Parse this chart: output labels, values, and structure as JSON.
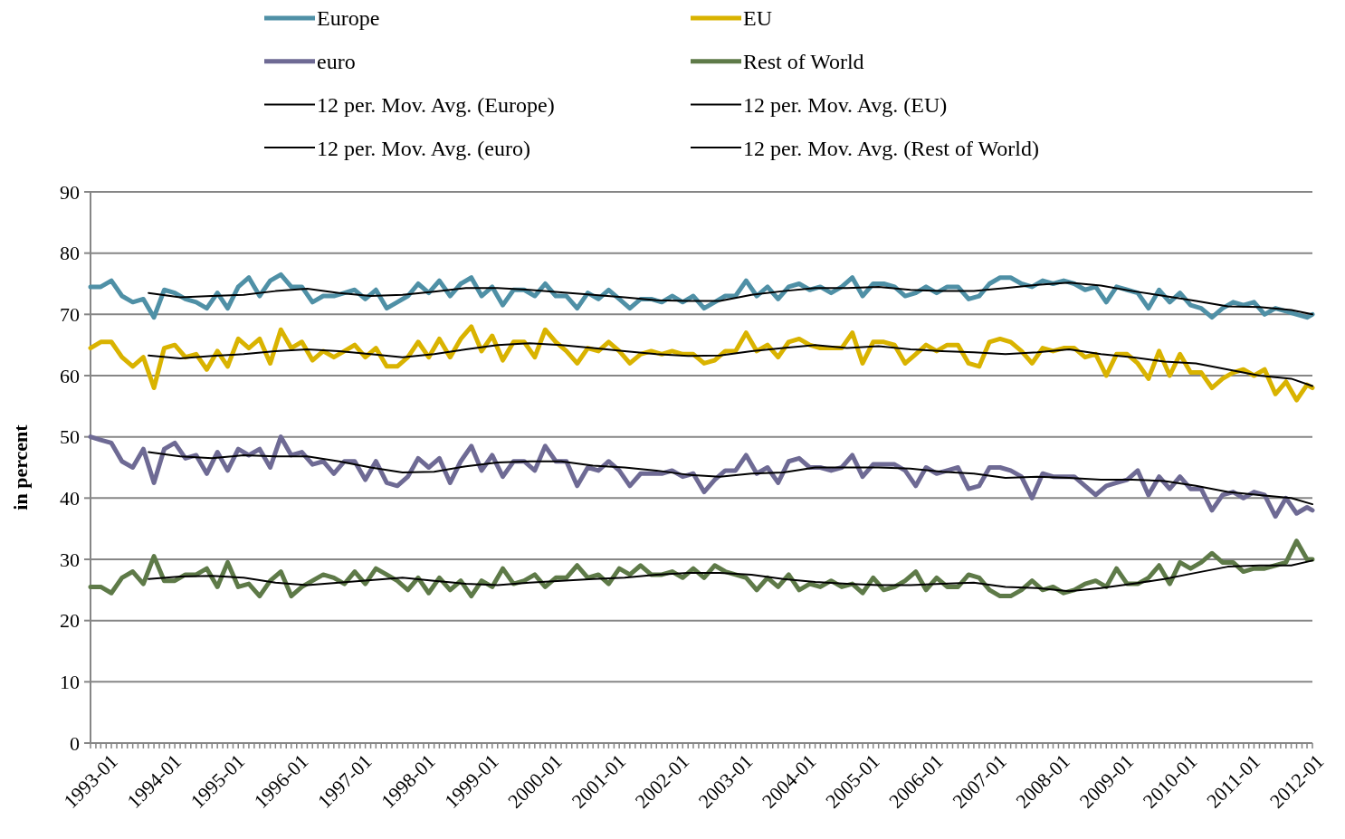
{
  "chart_data": {
    "type": "line",
    "ylabel": "in percent",
    "legend": "top",
    "grid": "y",
    "line_style": "solid",
    "marker": "none",
    "xlim": [
      "1993-01",
      "2012-04"
    ],
    "ylim": [
      0,
      90
    ],
    "yticks": [
      0,
      10,
      20,
      30,
      40,
      50,
      60,
      70,
      80,
      90
    ],
    "xticks": [
      "1993-01",
      "1994-01",
      "1995-01",
      "1996-01",
      "1997-01",
      "1998-01",
      "1999-01",
      "2000-01",
      "2001-01",
      "2002-01",
      "2003-01",
      "2004-01",
      "2005-01",
      "2006-01",
      "2007-01",
      "2008-01",
      "2009-01",
      "2010-01",
      "2011-01",
      "2012-01"
    ],
    "x": [
      "1993-01",
      "1993-03",
      "1993-05",
      "1993-07",
      "1993-09",
      "1993-11",
      "1994-01",
      "1994-03",
      "1994-05",
      "1994-07",
      "1994-09",
      "1994-11",
      "1995-01",
      "1995-03",
      "1995-05",
      "1995-07",
      "1995-09",
      "1995-11",
      "1996-01",
      "1996-03",
      "1996-05",
      "1996-07",
      "1996-09",
      "1996-11",
      "1997-01",
      "1997-03",
      "1997-05",
      "1997-07",
      "1997-09",
      "1997-11",
      "1998-01",
      "1998-03",
      "1998-05",
      "1998-07",
      "1998-09",
      "1998-11",
      "1999-01",
      "1999-03",
      "1999-05",
      "1999-07",
      "1999-09",
      "1999-11",
      "2000-01",
      "2000-03",
      "2000-05",
      "2000-07",
      "2000-09",
      "2000-11",
      "2001-01",
      "2001-03",
      "2001-05",
      "2001-07",
      "2001-09",
      "2001-11",
      "2002-01",
      "2002-03",
      "2002-05",
      "2002-07",
      "2002-09",
      "2002-11",
      "2003-01",
      "2003-03",
      "2003-05",
      "2003-07",
      "2003-09",
      "2003-11",
      "2004-01",
      "2004-03",
      "2004-05",
      "2004-07",
      "2004-09",
      "2004-11",
      "2005-01",
      "2005-03",
      "2005-05",
      "2005-07",
      "2005-09",
      "2005-11",
      "2006-01",
      "2006-03",
      "2006-05",
      "2006-07",
      "2006-09",
      "2006-11",
      "2007-01",
      "2007-03",
      "2007-05",
      "2007-07",
      "2007-09",
      "2007-11",
      "2008-01",
      "2008-03",
      "2008-05",
      "2008-07",
      "2008-09",
      "2008-11",
      "2009-01",
      "2009-03",
      "2009-05",
      "2009-07",
      "2009-09",
      "2009-11",
      "2010-01",
      "2010-03",
      "2010-05",
      "2010-07",
      "2010-09",
      "2010-11",
      "2011-01",
      "2011-03",
      "2011-05",
      "2011-07",
      "2011-09",
      "2011-11",
      "2012-01",
      "2012-03",
      "2012-04"
    ],
    "series": [
      {
        "name": "Europe",
        "color": "#4f90a6",
        "values": [
          74.5,
          74.5,
          75.5,
          73,
          72,
          72.5,
          69.5,
          74,
          73.5,
          72.5,
          72,
          71,
          73.5,
          71,
          74.5,
          76,
          73,
          75.5,
          76.5,
          74.5,
          74.5,
          72,
          73,
          73,
          73.5,
          74,
          72.5,
          74,
          71,
          72,
          73,
          75,
          73.5,
          75.5,
          73,
          75,
          76,
          73,
          74.5,
          71.5,
          74,
          74,
          73,
          75,
          73,
          73,
          71,
          73.5,
          72.5,
          74,
          72.5,
          71,
          72.5,
          72.5,
          72,
          73,
          72,
          73,
          71,
          72,
          73,
          73,
          75.5,
          73,
          74.5,
          72.5,
          74.5,
          75,
          74,
          74.5,
          73.5,
          74.5,
          76,
          73,
          75,
          75,
          74.5,
          73,
          73.5,
          74.5,
          73.5,
          74.5,
          74.5,
          72.5,
          73,
          75,
          76,
          76,
          75,
          74.5,
          75.5,
          75,
          75.5,
          75,
          74,
          74.5,
          72,
          74.5,
          74,
          73.5,
          71,
          74,
          72,
          73.5,
          71.5,
          71,
          69.5,
          71,
          72,
          71.5,
          72,
          70,
          71,
          70.5,
          70,
          69.5,
          70
        ]
      },
      {
        "name": "EU",
        "color": "#d9b300",
        "values": [
          64.5,
          65.5,
          65.5,
          63,
          61.5,
          63,
          58,
          64.5,
          65,
          63,
          63.5,
          61,
          64,
          61.5,
          66,
          64.5,
          66,
          62,
          67.5,
          64.5,
          65.5,
          62.5,
          64,
          63,
          64,
          65,
          63,
          64.5,
          61.5,
          61.5,
          63,
          65.5,
          63,
          66,
          63,
          66,
          68,
          64,
          66.5,
          62.5,
          65.5,
          65.5,
          63,
          67.5,
          65.5,
          64,
          62,
          64.5,
          64,
          65.5,
          64,
          62,
          63.5,
          64,
          63.5,
          64,
          63.5,
          63.5,
          62,
          62.5,
          64,
          64,
          67,
          64,
          65,
          63,
          65.5,
          66,
          65,
          64.5,
          64.5,
          64.5,
          67,
          62,
          65.5,
          65.5,
          65,
          62,
          63.5,
          65,
          64,
          65,
          65,
          62,
          61.5,
          65.5,
          66,
          65.5,
          64,
          62,
          64.5,
          64,
          64.5,
          64.5,
          63,
          63.5,
          60,
          63.5,
          63.5,
          62,
          59.5,
          64,
          60,
          63.5,
          60.5,
          60.5,
          58,
          59.5,
          60.5,
          61,
          60,
          61,
          57,
          59,
          56,
          58.5,
          58
        ]
      },
      {
        "name": "euro",
        "color": "#6e6a94",
        "values": [
          50,
          49.5,
          49,
          46,
          45,
          48,
          42.5,
          48,
          49,
          46.5,
          47,
          44,
          47.5,
          44.5,
          48,
          47,
          48,
          45,
          50,
          47,
          47.5,
          45.5,
          46,
          44,
          46,
          46,
          43,
          46,
          42.5,
          42,
          43.5,
          46.5,
          45,
          46.5,
          42.5,
          46,
          48.5,
          44.5,
          47,
          43.5,
          46,
          46,
          44.5,
          48.5,
          46,
          46,
          42,
          45,
          44.5,
          46,
          44.5,
          42,
          44,
          44,
          44,
          44.5,
          43.5,
          44,
          41,
          43,
          44.5,
          44.5,
          47,
          44,
          45,
          42.5,
          46,
          46.5,
          45,
          45,
          44.5,
          45,
          47,
          43.5,
          45.5,
          45.5,
          45.5,
          44.5,
          42,
          45,
          44,
          44.5,
          45,
          41.5,
          42,
          45,
          45,
          44.5,
          43.5,
          40,
          44,
          43.5,
          43.5,
          43.5,
          42,
          40.5,
          42,
          42.5,
          43,
          44.5,
          40.5,
          43.5,
          41.5,
          43.5,
          41.5,
          41.5,
          38,
          40.5,
          41,
          40,
          41,
          40.5,
          37,
          40,
          37.5,
          38.5,
          38
        ]
      },
      {
        "name": "Rest of World",
        "color": "#5e7a48",
        "values": [
          25.5,
          25.5,
          24.5,
          27,
          28,
          26,
          30.5,
          26.5,
          26.5,
          27.5,
          27.5,
          28.5,
          25.5,
          29.5,
          25.5,
          26,
          24,
          26.5,
          28,
          24,
          25.5,
          26.5,
          27.5,
          27,
          26,
          28,
          26,
          28.5,
          27.5,
          26.5,
          25,
          27,
          24.5,
          27,
          25,
          26.5,
          24,
          26.5,
          25.5,
          28.5,
          26,
          26.5,
          27.5,
          25.5,
          27,
          27,
          29,
          27,
          27.5,
          26,
          28.5,
          27.5,
          29,
          27.5,
          27.5,
          28,
          27,
          28.5,
          27,
          29,
          28,
          27.5,
          27,
          25,
          27,
          25.5,
          27.5,
          25,
          26,
          25.5,
          26.5,
          25.5,
          26,
          24.5,
          27,
          25,
          25.5,
          26.5,
          28,
          25,
          27,
          25.5,
          25.5,
          27.5,
          27,
          25,
          24,
          24,
          25,
          26.5,
          25,
          25.5,
          24.5,
          25,
          26,
          26.5,
          25.5,
          28.5,
          26,
          26,
          27,
          29,
          26,
          29.5,
          28.5,
          29.5,
          31,
          29.5,
          29.5,
          28,
          28.5,
          28.5,
          29,
          29.5,
          33,
          30,
          30
        ]
      },
      {
        "name": "12 per. Mov. Avg. (Europe)",
        "color": "#000000",
        "x": [
          "1993-12",
          "1994-06",
          "1994-12",
          "1995-06",
          "1995-12",
          "1996-06",
          "1996-12",
          "1997-06",
          "1997-12",
          "1998-06",
          "1998-12",
          "1999-06",
          "1999-12",
          "2000-06",
          "2000-12",
          "2001-06",
          "2001-12",
          "2002-06",
          "2002-12",
          "2003-06",
          "2003-12",
          "2004-06",
          "2004-12",
          "2005-06",
          "2005-12",
          "2006-06",
          "2006-12",
          "2007-06",
          "2007-12",
          "2008-06",
          "2008-12",
          "2009-06",
          "2009-12",
          "2010-06",
          "2010-12",
          "2011-06",
          "2011-12",
          "2012-04"
        ],
        "values": [
          73.5,
          72.8,
          73,
          73.2,
          73.8,
          74.2,
          73.5,
          73,
          73.2,
          73.7,
          74.3,
          74.3,
          74,
          73.6,
          73.2,
          72.8,
          72.3,
          72.2,
          72.2,
          73.2,
          73.8,
          74.3,
          74.3,
          74.5,
          74,
          73.8,
          73.8,
          74.3,
          74.8,
          75.2,
          74.7,
          73.8,
          73,
          72.2,
          71.3,
          71.2,
          70.7,
          70
        ]
      },
      {
        "name": "12 per. Mov. Avg. (EU)",
        "color": "#000000",
        "x": [
          "1993-12",
          "1994-06",
          "1994-12",
          "1995-06",
          "1995-12",
          "1996-06",
          "1996-12",
          "1997-06",
          "1997-12",
          "1998-06",
          "1998-12",
          "1999-06",
          "1999-12",
          "2000-06",
          "2000-12",
          "2001-06",
          "2001-12",
          "2002-06",
          "2002-12",
          "2003-06",
          "2003-12",
          "2004-06",
          "2004-12",
          "2005-06",
          "2005-12",
          "2006-06",
          "2006-12",
          "2007-06",
          "2007-12",
          "2008-06",
          "2008-12",
          "2009-06",
          "2009-12",
          "2010-06",
          "2010-12",
          "2011-06",
          "2011-12",
          "2012-04"
        ],
        "values": [
          63.3,
          62.8,
          63.2,
          63.5,
          64,
          64.3,
          64,
          63.5,
          63,
          63.5,
          64.3,
          65,
          65.3,
          65,
          64.5,
          64,
          63.5,
          63.2,
          63.3,
          64,
          64.5,
          65,
          64.5,
          64.8,
          64.3,
          64,
          63.8,
          63.5,
          63.8,
          64.3,
          63.5,
          63,
          62.3,
          62,
          61,
          60,
          59.5,
          58.3
        ]
      },
      {
        "name": "12 per. Mov. Avg. (euro)",
        "color": "#000000",
        "x": [
          "1993-12",
          "1994-06",
          "1994-12",
          "1995-06",
          "1995-12",
          "1996-06",
          "1996-12",
          "1997-06",
          "1997-12",
          "1998-06",
          "1998-12",
          "1999-06",
          "1999-12",
          "2000-06",
          "2000-12",
          "2001-06",
          "2001-12",
          "2002-06",
          "2002-12",
          "2003-06",
          "2003-12",
          "2004-06",
          "2004-12",
          "2005-06",
          "2005-12",
          "2006-06",
          "2006-12",
          "2007-06",
          "2007-12",
          "2008-06",
          "2008-12",
          "2009-06",
          "2009-12",
          "2010-06",
          "2010-12",
          "2011-06",
          "2011-12",
          "2012-04"
        ],
        "values": [
          47.5,
          46.8,
          46.5,
          47,
          46.8,
          46.8,
          46,
          45,
          44.2,
          44.3,
          45.2,
          45.8,
          46,
          46,
          45.3,
          45,
          44.5,
          43.8,
          43.5,
          44,
          44.2,
          45,
          45,
          45,
          44.8,
          44.3,
          44,
          43.3,
          43.5,
          43.3,
          43,
          43,
          42.8,
          42,
          41,
          40.5,
          40,
          39
        ]
      },
      {
        "name": "12 per. Mov. Avg. (Rest of World)",
        "color": "#000000",
        "x": [
          "1993-12",
          "1994-06",
          "1994-12",
          "1995-06",
          "1995-12",
          "1996-06",
          "1996-12",
          "1997-06",
          "1997-12",
          "1998-06",
          "1998-12",
          "1999-06",
          "1999-12",
          "2000-06",
          "2000-12",
          "2001-06",
          "2001-12",
          "2002-06",
          "2002-12",
          "2003-06",
          "2003-12",
          "2004-06",
          "2004-12",
          "2005-06",
          "2005-12",
          "2006-06",
          "2006-12",
          "2007-06",
          "2007-12",
          "2008-06",
          "2008-12",
          "2009-06",
          "2009-12",
          "2010-06",
          "2010-12",
          "2011-06",
          "2011-12",
          "2012-04"
        ],
        "values": [
          26.8,
          27.2,
          27.3,
          27,
          26.2,
          25.8,
          26.2,
          26.6,
          27,
          26.5,
          26,
          25.8,
          26.2,
          26.5,
          26.8,
          27,
          27.5,
          27.8,
          27.8,
          27.5,
          26.8,
          26.3,
          26,
          25.8,
          25.8,
          26,
          26.2,
          25.5,
          25.3,
          24.8,
          25.3,
          26,
          26.8,
          27.8,
          28.8,
          29,
          29,
          29.8
        ]
      }
    ]
  }
}
